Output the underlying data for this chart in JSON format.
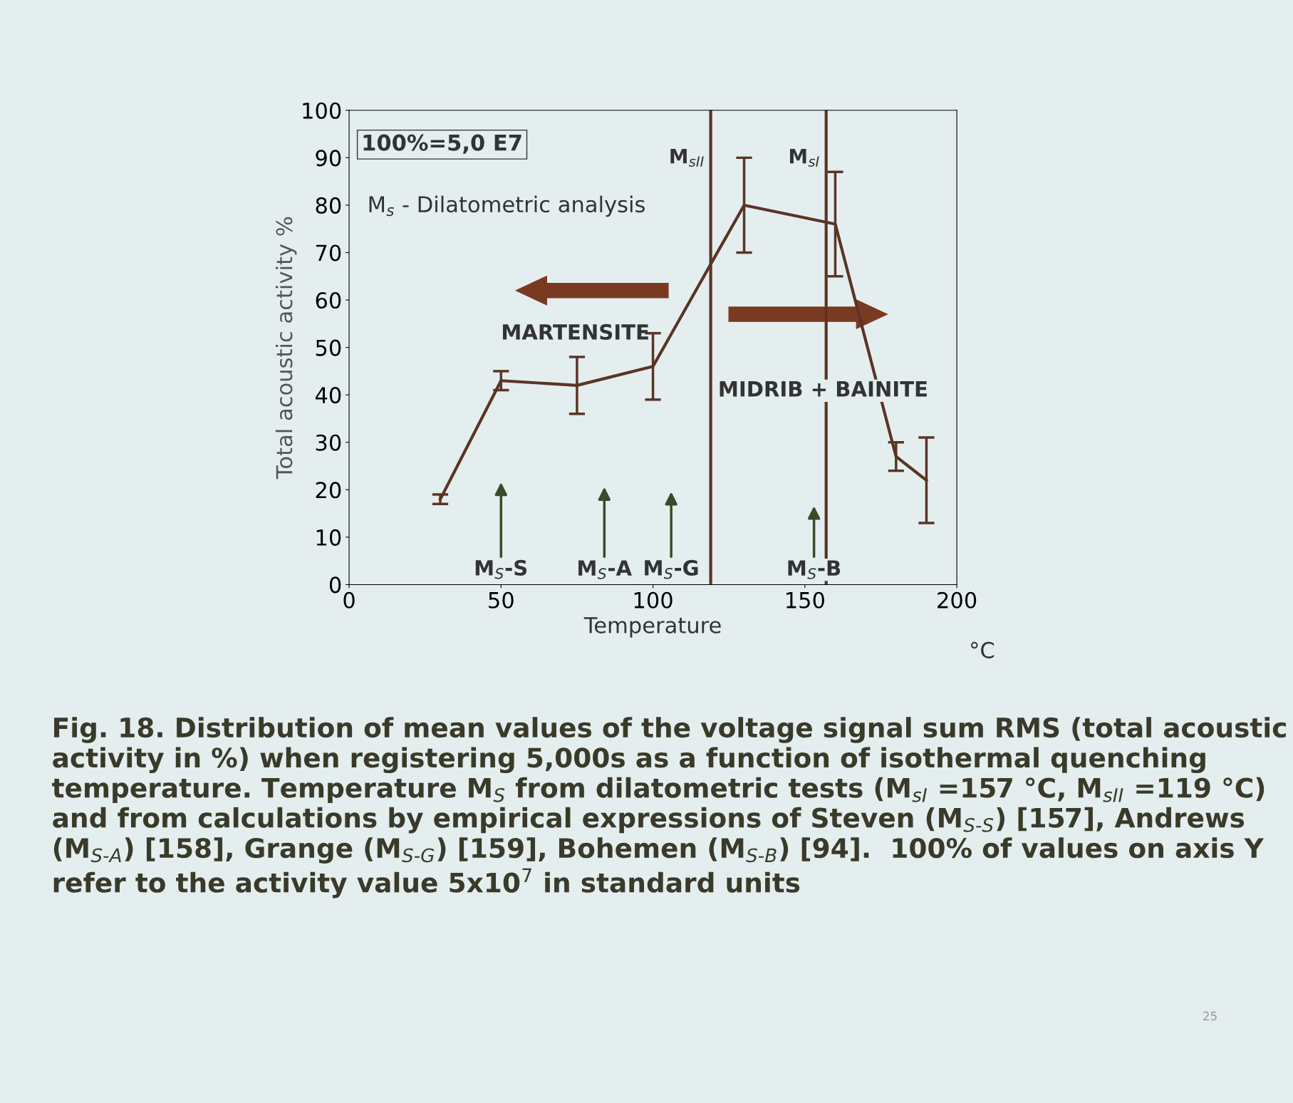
{
  "chart_data": {
    "type": "line",
    "xlabel": "Temperature",
    "ylabel": "Total acoustic activity %",
    "x": [
      30,
      50,
      75,
      100,
      130,
      160,
      180,
      190
    ],
    "series": [
      {
        "color": "#5a3426",
        "values": [
          18,
          43,
          42,
          46,
          80,
          76,
          27,
          22
        ],
        "errors": [
          1,
          2,
          6,
          7,
          10,
          11,
          3,
          9
        ]
      }
    ],
    "xlim": [
      0,
      200
    ],
    "xticks": [
      0,
      50,
      100,
      150,
      200
    ],
    "ylim": [
      0,
      100
    ],
    "yticks": [
      0,
      10,
      20,
      30,
      40,
      50,
      60,
      70,
      80,
      90,
      100
    ],
    "grid": false,
    "legend": false,
    "marker": "none",
    "line_style": "solid",
    "ref_lines": [
      {
        "axis": "x",
        "value": 119,
        "label": "M$_{sII}$",
        "color": "#5a3426"
      },
      {
        "axis": "x",
        "value": 157,
        "label": "M$_{sI}$",
        "color": "#5a3426"
      }
    ],
    "annotations": [
      "100%=5,0 E7",
      "M$_{s}$ - Dilatometric analysis",
      "MARTENSITE",
      "MIDRIB + BAINITE",
      "°C",
      "M$_{S}$-S",
      "M$_{S}$-A",
      "M$_{S}$-G",
      "M$_{S}$-B",
      "Fig. 18. Distribution of mean values of the voltage signal sum RMS (total acoustic activity in %) when registering 5,000s as a function of isothermal quenching temperature. Temperature M$_{S}$ from dilatometric tests (M$_{sI}$ =157 °C, M$_{sII}$ =119 °C) and from calculations by empirical expressions of Steven (M$_{S-S}$) [157], Andrews (M$_{S-A}$) [158], Grange (M$_{S-G}$) [159], Bohemen (M$_{S-B}$) [94].  100% of values on axis Y refer to the activity value 5x10$^{7}$ in standard units",
      "25"
    ]
  }
}
